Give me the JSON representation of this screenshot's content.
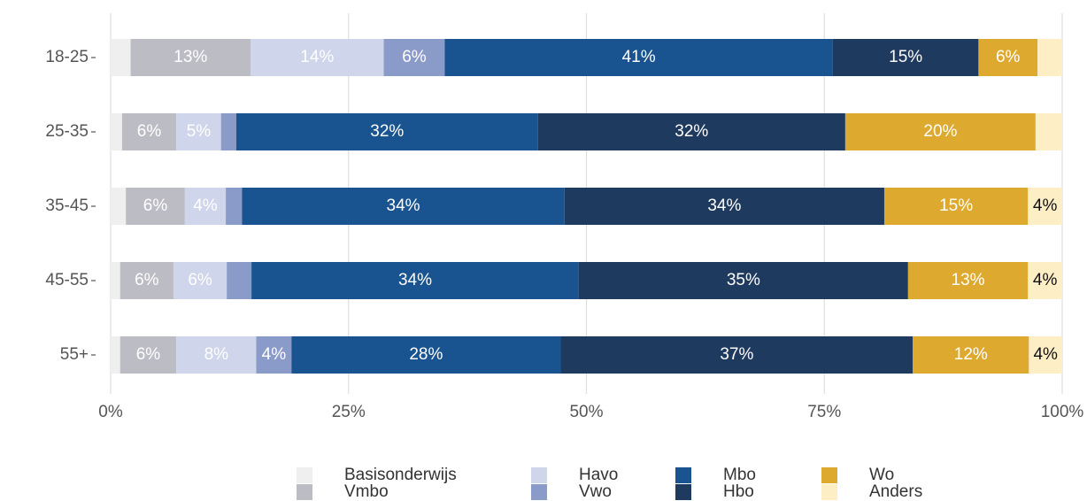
{
  "chart_data": {
    "type": "stacked-barh",
    "categories": [
      "18-25",
      "25-35",
      "35-45",
      "45-55",
      "55+"
    ],
    "xlim": [
      0,
      100
    ],
    "xticks": [
      {
        "value": 0,
        "label": "0%"
      },
      {
        "value": 25,
        "label": "25%"
      },
      {
        "value": 50,
        "label": "50%"
      },
      {
        "value": 75,
        "label": "75%"
      },
      {
        "value": 100,
        "label": "100%"
      }
    ],
    "grid": true,
    "series": [
      {
        "name": "Basisonderwijs",
        "color": "#efefef",
        "values": [
          2.1,
          1.2,
          1.6,
          1.0,
          1.0
        ],
        "value_labels": [
          null,
          null,
          null,
          null,
          null
        ]
      },
      {
        "name": "Vmbo",
        "color": "#bcbcc4",
        "values": [
          12.6,
          5.7,
          6.2,
          5.6,
          5.9
        ],
        "value_labels": [
          "13%",
          "6%",
          "6%",
          "6%",
          "6%"
        ]
      },
      {
        "name": "Havo",
        "color": "#cfd5ea",
        "values": [
          14.0,
          4.7,
          4.3,
          5.6,
          8.4
        ],
        "value_labels": [
          "14%",
          "5%",
          "4%",
          "6%",
          "8%"
        ]
      },
      {
        "name": "Vwo",
        "color": "#8b9bc9",
        "values": [
          6.4,
          1.6,
          1.7,
          2.6,
          3.7
        ],
        "value_labels": [
          "6%",
          null,
          null,
          null,
          "4%"
        ]
      },
      {
        "name": "Mbo",
        "color": "#1a5490",
        "values": [
          40.8,
          31.7,
          33.9,
          34.4,
          28.3
        ],
        "value_labels": [
          "41%",
          "32%",
          "34%",
          "34%",
          "28%"
        ]
      },
      {
        "name": "Hbo",
        "color": "#1f3a5f",
        "values": [
          15.3,
          32.3,
          33.6,
          34.6,
          37.0
        ],
        "value_labels": [
          "15%",
          "32%",
          "34%",
          "35%",
          "37%"
        ]
      },
      {
        "name": "Wo",
        "color": "#ddaa2f",
        "values": [
          6.2,
          20.0,
          15.1,
          12.6,
          12.2
        ],
        "value_labels": [
          "6%",
          "20%",
          "15%",
          "13%",
          "12%"
        ]
      },
      {
        "name": "Anders",
        "color": "#fdeec5",
        "values": [
          2.6,
          2.8,
          3.6,
          3.6,
          3.5
        ],
        "value_labels": [
          null,
          null,
          "4%",
          "4%",
          "4%"
        ]
      }
    ]
  }
}
